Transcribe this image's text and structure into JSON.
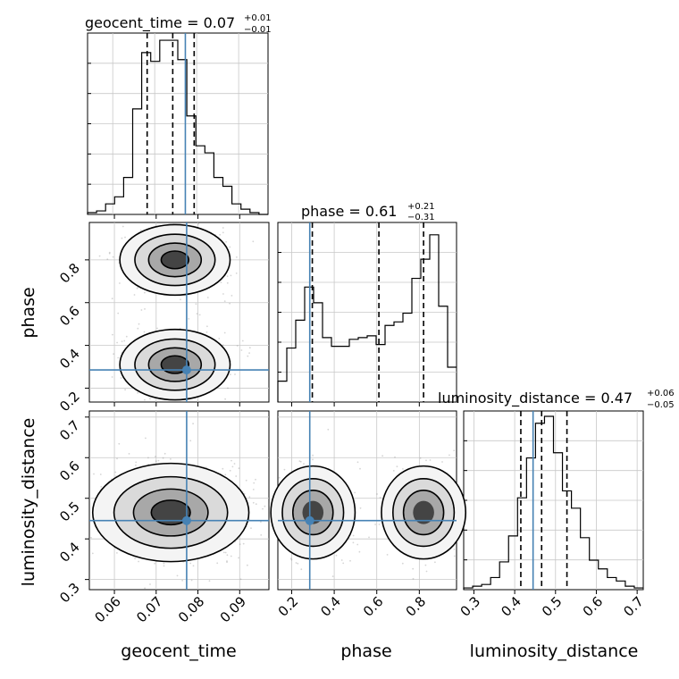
{
  "chart_data": {
    "type": "corner",
    "parameters": [
      "geocent_time",
      "phase",
      "luminosity_distance"
    ],
    "truths": {
      "geocent_time": 0.0773,
      "phase": 0.285,
      "luminosity_distance": 0.445
    },
    "truth_color": "#4682b4",
    "grid": true,
    "titles": {
      "geocent_time": {
        "label": "geocent_time = 0.07",
        "plus": "+0.01",
        "minus": "−0.01"
      },
      "phase": {
        "label": "phase = 0.61",
        "plus": "+0.21",
        "minus": "−0.31"
      },
      "luminosity_distance": {
        "label": "luminosity_distance = 0.47",
        "plus": "+0.06",
        "minus": "−0.05"
      }
    },
    "axes": {
      "geocent_time": {
        "lim": [
          0.054,
          0.097
        ],
        "ticks": [
          0.06,
          0.07,
          0.08,
          0.09
        ],
        "tick_labels": [
          "0.06",
          "0.07",
          "0.08",
          "0.09"
        ]
      },
      "phase": {
        "lim": [
          0.135,
          0.975
        ],
        "ticks": [
          0.2,
          0.4,
          0.6,
          0.8
        ],
        "tick_labels": [
          "0.2",
          "0.4",
          "0.6",
          "0.8"
        ]
      },
      "luminosity_distance": {
        "lim": [
          0.275,
          0.715
        ],
        "ticks": [
          0.3,
          0.4,
          0.5,
          0.6,
          0.7
        ],
        "tick_labels": [
          "0.3",
          "0.4",
          "0.5",
          "0.6",
          "0.7"
        ]
      }
    },
    "histograms": {
      "geocent_time": {
        "x_start": 0.054,
        "bin_width": 0.00215,
        "counts": [
          0.01,
          0.02,
          0.06,
          0.1,
          0.21,
          0.6,
          0.92,
          0.87,
          0.99,
          0.99,
          0.88,
          0.56,
          0.39,
          0.35,
          0.21,
          0.16,
          0.06,
          0.03,
          0.01,
          0.0
        ],
        "quantiles": [
          0.0682,
          0.0743,
          0.0794
        ]
      },
      "phase": {
        "x_start": 0.135,
        "bin_width": 0.042,
        "counts": [
          0.12,
          0.31,
          0.47,
          0.66,
          0.57,
          0.37,
          0.32,
          0.32,
          0.36,
          0.37,
          0.38,
          0.33,
          0.44,
          0.46,
          0.51,
          0.71,
          0.82,
          0.96,
          0.55,
          0.2
        ],
        "quantiles": [
          0.297,
          0.61,
          0.82
        ]
      },
      "luminosity_distance": {
        "x_start": 0.275,
        "bin_width": 0.022,
        "counts": [
          0.01,
          0.02,
          0.03,
          0.07,
          0.16,
          0.31,
          0.53,
          0.76,
          0.96,
          1.0,
          0.79,
          0.57,
          0.47,
          0.3,
          0.17,
          0.12,
          0.07,
          0.05,
          0.02,
          0.01
        ],
        "quantiles": [
          0.415,
          0.466,
          0.528
        ]
      }
    },
    "joint_2d": {
      "phase_vs_geocent_time": {
        "density_modes": [
          {
            "x": 0.0745,
            "y": 0.8
          },
          {
            "x": 0.0745,
            "y": 0.31
          }
        ],
        "contour_levels": 4
      },
      "luminosity_distance_vs_geocent_time": {
        "density_modes": [
          {
            "x": 0.0735,
            "y": 0.465
          }
        ],
        "contour_levels": 4
      },
      "luminosity_distance_vs_phase": {
        "density_modes": [
          {
            "x": 0.3,
            "y": 0.465
          },
          {
            "x": 0.82,
            "y": 0.465
          }
        ],
        "contour_levels": 3
      }
    }
  }
}
